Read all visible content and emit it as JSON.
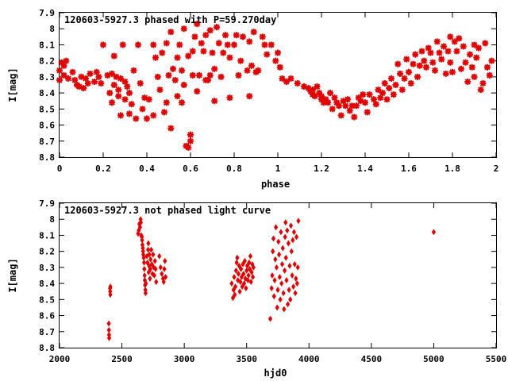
{
  "colors": {
    "points": "#e00000",
    "axes": "#000000",
    "background": "#ffffff"
  },
  "chart_data": [
    {
      "type": "scatter",
      "title": "120603-5927.3 phased with P=59.270day",
      "xlabel": "phase",
      "ylabel": "I[mag]",
      "xlim": [
        0,
        2
      ],
      "ylim": [
        7.9,
        8.8
      ],
      "y_inverted": true,
      "x_ticks": [
        "0",
        "0.2",
        "0.4",
        "0.6",
        "0.8",
        "1",
        "1.2",
        "1.4",
        "1.6",
        "1.8",
        "2"
      ],
      "y_ticks": [
        "7.9",
        "8",
        "8.1",
        "8.2",
        "8.3",
        "8.4",
        "8.5",
        "8.6",
        "8.7",
        "8.8"
      ],
      "marker": "cross",
      "points": [
        [
          0.0,
          8.26
        ],
        [
          0.0,
          8.32
        ],
        [
          0.01,
          8.21
        ],
        [
          0.02,
          8.29
        ],
        [
          0.02,
          8.23
        ],
        [
          0.03,
          8.2
        ],
        [
          0.04,
          8.31
        ],
        [
          0.06,
          8.27
        ],
        [
          0.07,
          8.32
        ],
        [
          0.08,
          8.35
        ],
        [
          0.09,
          8.36
        ],
        [
          0.1,
          8.3
        ],
        [
          0.11,
          8.37
        ],
        [
          0.12,
          8.31
        ],
        [
          0.13,
          8.34
        ],
        [
          0.14,
          8.28
        ],
        [
          0.16,
          8.33
        ],
        [
          0.17,
          8.27
        ],
        [
          0.18,
          8.3
        ],
        [
          0.19,
          8.34
        ],
        [
          0.2,
          8.1
        ],
        [
          0.22,
          8.29
        ],
        [
          0.23,
          8.4
        ],
        [
          0.24,
          8.46
        ],
        [
          0.24,
          8.28
        ],
        [
          0.25,
          8.35
        ],
        [
          0.25,
          8.17
        ],
        [
          0.26,
          8.3
        ],
        [
          0.27,
          8.38
        ],
        [
          0.27,
          8.42
        ],
        [
          0.28,
          8.31
        ],
        [
          0.28,
          8.54
        ],
        [
          0.29,
          8.1
        ],
        [
          0.3,
          8.44
        ],
        [
          0.3,
          8.33
        ],
        [
          0.31,
          8.36
        ],
        [
          0.32,
          8.4
        ],
        [
          0.32,
          8.53
        ],
        [
          0.33,
          8.47
        ],
        [
          0.34,
          8.26
        ],
        [
          0.35,
          8.56
        ],
        [
          0.36,
          8.1
        ],
        [
          0.37,
          8.34
        ],
        [
          0.38,
          8.5
        ],
        [
          0.39,
          8.43
        ],
        [
          0.4,
          8.56
        ],
        [
          0.41,
          8.44
        ],
        [
          0.43,
          8.1
        ],
        [
          0.43,
          8.54
        ],
        [
          0.44,
          8.18
        ],
        [
          0.45,
          8.3
        ],
        [
          0.46,
          8.38
        ],
        [
          0.47,
          8.15
        ],
        [
          0.48,
          8.52
        ],
        [
          0.49,
          8.46
        ],
        [
          0.49,
          8.09
        ],
        [
          0.5,
          8.29
        ],
        [
          0.51,
          8.02
        ],
        [
          0.51,
          8.62
        ],
        [
          0.52,
          8.25
        ],
        [
          0.53,
          8.32
        ],
        [
          0.54,
          8.18
        ],
        [
          0.54,
          8.42
        ],
        [
          0.55,
          8.1
        ],
        [
          0.56,
          8.46
        ],
        [
          0.56,
          8.26
        ],
        [
          0.57,
          8.35
        ],
        [
          0.57,
          8.0
        ],
        [
          0.58,
          8.73
        ],
        [
          0.59,
          8.74
        ],
        [
          0.59,
          8.17
        ],
        [
          0.6,
          8.66
        ],
        [
          0.6,
          8.7
        ],
        [
          0.61,
          8.29
        ],
        [
          0.61,
          8.14
        ],
        [
          0.62,
          8.05
        ],
        [
          0.63,
          8.39
        ],
        [
          0.63,
          7.97
        ],
        [
          0.64,
          8.29
        ],
        [
          0.65,
          8.09
        ],
        [
          0.66,
          8.14
        ],
        [
          0.67,
          8.32
        ],
        [
          0.67,
          8.04
        ],
        [
          0.68,
          8.32
        ],
        [
          0.69,
          8.01
        ],
        [
          0.69,
          8.29
        ],
        [
          0.7,
          8.15
        ],
        [
          0.71,
          8.25
        ],
        [
          0.71,
          8.45
        ],
        [
          0.72,
          7.99
        ],
        [
          0.73,
          8.09
        ],
        [
          0.74,
          8.3
        ],
        [
          0.75,
          8.15
        ],
        [
          0.76,
          8.04
        ],
        [
          0.77,
          8.1
        ],
        [
          0.78,
          8.43
        ],
        [
          0.78,
          8.18
        ],
        [
          0.8,
          8.1
        ],
        [
          0.81,
          8.04
        ],
        [
          0.82,
          8.29
        ],
        [
          0.83,
          8.2
        ],
        [
          0.84,
          8.05
        ],
        [
          0.86,
          8.26
        ],
        [
          0.87,
          8.42
        ],
        [
          0.87,
          8.08
        ],
        [
          0.88,
          8.23
        ],
        [
          0.89,
          8.02
        ],
        [
          0.9,
          8.27
        ],
        [
          0.91,
          8.26
        ],
        [
          0.93,
          8.05
        ],
        [
          0.94,
          8.1
        ],
        [
          0.95,
          8.16
        ],
        [
          0.97,
          8.1
        ],
        [
          0.99,
          8.2
        ],
        [
          1.0,
          8.15
        ],
        [
          1.01,
          8.24
        ],
        [
          1.02,
          8.31
        ],
        [
          1.04,
          8.33
        ],
        [
          1.06,
          8.31
        ],
        [
          1.09,
          8.34
        ],
        [
          1.12,
          8.36
        ],
        [
          1.14,
          8.37
        ],
        [
          1.15,
          8.39
        ],
        [
          1.16,
          8.41
        ],
        [
          1.16,
          8.38
        ],
        [
          1.17,
          8.42
        ],
        [
          1.18,
          8.36
        ],
        [
          1.19,
          8.4
        ],
        [
          1.2,
          8.44
        ],
        [
          1.2,
          8.42
        ],
        [
          1.21,
          8.46
        ],
        [
          1.22,
          8.44
        ],
        [
          1.23,
          8.46
        ],
        [
          1.24,
          8.4
        ],
        [
          1.25,
          8.5
        ],
        [
          1.26,
          8.43
        ],
        [
          1.27,
          8.46
        ],
        [
          1.28,
          8.48
        ],
        [
          1.29,
          8.54
        ],
        [
          1.3,
          8.45
        ],
        [
          1.31,
          8.48
        ],
        [
          1.32,
          8.44
        ],
        [
          1.33,
          8.51
        ],
        [
          1.34,
          8.48
        ],
        [
          1.35,
          8.55
        ],
        [
          1.36,
          8.48
        ],
        [
          1.37,
          8.43
        ],
        [
          1.38,
          8.45
        ],
        [
          1.39,
          8.41
        ],
        [
          1.4,
          8.46
        ],
        [
          1.41,
          8.52
        ],
        [
          1.42,
          8.41
        ],
        [
          1.44,
          8.44
        ],
        [
          1.45,
          8.47
        ],
        [
          1.46,
          8.38
        ],
        [
          1.47,
          8.43
        ],
        [
          1.48,
          8.4
        ],
        [
          1.49,
          8.34
        ],
        [
          1.5,
          8.44
        ],
        [
          1.51,
          8.37
        ],
        [
          1.52,
          8.31
        ],
        [
          1.53,
          8.41
        ],
        [
          1.54,
          8.35
        ],
        [
          1.55,
          8.22
        ],
        [
          1.56,
          8.28
        ],
        [
          1.57,
          8.38
        ],
        [
          1.58,
          8.31
        ],
        [
          1.59,
          8.19
        ],
        [
          1.6,
          8.27
        ],
        [
          1.61,
          8.34
        ],
        [
          1.62,
          8.22
        ],
        [
          1.63,
          8.16
        ],
        [
          1.64,
          8.3
        ],
        [
          1.65,
          8.23
        ],
        [
          1.66,
          8.14
        ],
        [
          1.67,
          8.2
        ],
        [
          1.68,
          8.24
        ],
        [
          1.69,
          8.12
        ],
        [
          1.7,
          8.15
        ],
        [
          1.71,
          8.21
        ],
        [
          1.72,
          8.26
        ],
        [
          1.73,
          8.08
        ],
        [
          1.74,
          8.15
        ],
        [
          1.75,
          8.19
        ],
        [
          1.76,
          8.11
        ],
        [
          1.77,
          8.28
        ],
        [
          1.78,
          8.14
        ],
        [
          1.79,
          8.05
        ],
        [
          1.79,
          8.21
        ],
        [
          1.8,
          8.27
        ],
        [
          1.81,
          8.08
        ],
        [
          1.82,
          8.14
        ],
        [
          1.83,
          8.06
        ],
        [
          1.84,
          8.25
        ],
        [
          1.85,
          8.11
        ],
        [
          1.86,
          8.21
        ],
        [
          1.87,
          8.33
        ],
        [
          1.88,
          8.16
        ],
        [
          1.89,
          8.24
        ],
        [
          1.9,
          8.1
        ],
        [
          1.9,
          8.3
        ],
        [
          1.91,
          8.18
        ],
        [
          1.92,
          8.12
        ],
        [
          1.93,
          8.38
        ],
        [
          1.94,
          8.34
        ],
        [
          1.95,
          8.09
        ],
        [
          1.96,
          8.24
        ],
        [
          1.97,
          8.29
        ],
        [
          1.98,
          8.2
        ]
      ]
    },
    {
      "type": "scatter",
      "title": "120603-5927.3 not phased light curve",
      "xlabel": "hjd0",
      "ylabel": "I[mag]",
      "xlim": [
        2000,
        5500
      ],
      "ylim": [
        7.9,
        8.8
      ],
      "y_inverted": true,
      "x_ticks": [
        "2000",
        "2500",
        "3000",
        "3500",
        "4000",
        "4500",
        "5000",
        "5500"
      ],
      "y_ticks": [
        "7.9",
        "8",
        "8.1",
        "8.2",
        "8.3",
        "8.4",
        "8.5",
        "8.6",
        "8.7",
        "8.8"
      ],
      "marker": "diamond",
      "points": [
        [
          2395,
          8.65
        ],
        [
          2396,
          8.69
        ],
        [
          2397,
          8.72
        ],
        [
          2398,
          8.74
        ],
        [
          2405,
          8.43
        ],
        [
          2406,
          8.45
        ],
        [
          2407,
          8.47
        ],
        [
          2408,
          8.42
        ],
        [
          2630,
          8.09
        ],
        [
          2635,
          8.07
        ],
        [
          2640,
          8.03
        ],
        [
          2645,
          8.05
        ],
        [
          2650,
          8.0
        ],
        [
          2652,
          8.02
        ],
        [
          2655,
          8.1
        ],
        [
          2660,
          8.11
        ],
        [
          2662,
          8.13
        ],
        [
          2665,
          8.16
        ],
        [
          2668,
          8.18
        ],
        [
          2670,
          8.2
        ],
        [
          2672,
          8.22
        ],
        [
          2675,
          8.24
        ],
        [
          2678,
          8.27
        ],
        [
          2680,
          8.31
        ],
        [
          2682,
          8.35
        ],
        [
          2684,
          8.38
        ],
        [
          2686,
          8.41
        ],
        [
          2688,
          8.44
        ],
        [
          2690,
          8.46
        ],
        [
          2692,
          8.4
        ],
        [
          2700,
          8.23
        ],
        [
          2705,
          8.27
        ],
        [
          2710,
          8.19
        ],
        [
          2712,
          8.15
        ],
        [
          2715,
          8.33
        ],
        [
          2718,
          8.29
        ],
        [
          2720,
          8.22
        ],
        [
          2725,
          8.37
        ],
        [
          2728,
          8.31
        ],
        [
          2730,
          8.25
        ],
        [
          2735,
          8.19
        ],
        [
          2740,
          8.28
        ],
        [
          2745,
          8.34
        ],
        [
          2750,
          8.22
        ],
        [
          2755,
          8.3
        ],
        [
          2760,
          8.35
        ],
        [
          2765,
          8.26
        ],
        [
          2770,
          8.31
        ],
        [
          2775,
          8.39
        ],
        [
          2800,
          8.23
        ],
        [
          2810,
          8.3
        ],
        [
          2820,
          8.34
        ],
        [
          2830,
          8.37
        ],
        [
          2835,
          8.39
        ],
        [
          2840,
          8.31
        ],
        [
          2845,
          8.26
        ],
        [
          2850,
          8.36
        ],
        [
          3380,
          8.4
        ],
        [
          3390,
          8.49
        ],
        [
          3395,
          8.44
        ],
        [
          3400,
          8.36
        ],
        [
          3405,
          8.47
        ],
        [
          3410,
          8.42
        ],
        [
          3415,
          8.32
        ],
        [
          3420,
          8.27
        ],
        [
          3425,
          8.24
        ],
        [
          3430,
          8.38
        ],
        [
          3435,
          8.34
        ],
        [
          3440,
          8.29
        ],
        [
          3445,
          8.45
        ],
        [
          3450,
          8.39
        ],
        [
          3455,
          8.31
        ],
        [
          3460,
          8.36
        ],
        [
          3465,
          8.42
        ],
        [
          3470,
          8.28
        ],
        [
          3475,
          8.34
        ],
        [
          3480,
          8.4
        ],
        [
          3485,
          8.26
        ],
        [
          3490,
          8.37
        ],
        [
          3495,
          8.43
        ],
        [
          3500,
          8.32
        ],
        [
          3505,
          8.29
        ],
        [
          3510,
          8.38
        ],
        [
          3515,
          8.35
        ],
        [
          3520,
          8.27
        ],
        [
          3525,
          8.31
        ],
        [
          3530,
          8.23
        ],
        [
          3535,
          8.39
        ],
        [
          3540,
          8.33
        ],
        [
          3545,
          8.28
        ],
        [
          3550,
          8.36
        ],
        [
          3555,
          8.3
        ],
        [
          3690,
          8.62
        ],
        [
          3700,
          8.43
        ],
        [
          3705,
          8.35
        ],
        [
          3710,
          8.2
        ],
        [
          3715,
          8.12
        ],
        [
          3720,
          8.48
        ],
        [
          3725,
          8.38
        ],
        [
          3730,
          8.25
        ],
        [
          3735,
          8.05
        ],
        [
          3740,
          8.3
        ],
        [
          3745,
          8.55
        ],
        [
          3750,
          8.44
        ],
        [
          3755,
          8.14
        ],
        [
          3760,
          8.22
        ],
        [
          3765,
          8.36
        ],
        [
          3770,
          8.5
        ],
        [
          3775,
          8.08
        ],
        [
          3780,
          8.4
        ],
        [
          3785,
          8.28
        ],
        [
          3790,
          8.18
        ],
        [
          3795,
          8.46
        ],
        [
          3800,
          8.56
        ],
        [
          3805,
          8.32
        ],
        [
          3808,
          8.11
        ],
        [
          3812,
          8.02
        ],
        [
          3815,
          8.24
        ],
        [
          3820,
          8.38
        ],
        [
          3825,
          8.07
        ],
        [
          3830,
          8.53
        ],
        [
          3835,
          8.15
        ],
        [
          3840,
          8.44
        ],
        [
          3845,
          8.29
        ],
        [
          3850,
          8.5
        ],
        [
          3855,
          8.04
        ],
        [
          3860,
          8.2
        ],
        [
          3865,
          8.35
        ],
        [
          3870,
          8.13
        ],
        [
          3875,
          8.42
        ],
        [
          3880,
          8.08
        ],
        [
          3885,
          8.28
        ],
        [
          3890,
          8.46
        ],
        [
          3895,
          8.37
        ],
        [
          3900,
          8.11
        ],
        [
          3905,
          8.4
        ],
        [
          3910,
          8.3
        ],
        [
          3915,
          8.01
        ],
        [
          5000,
          8.08
        ]
      ]
    }
  ]
}
